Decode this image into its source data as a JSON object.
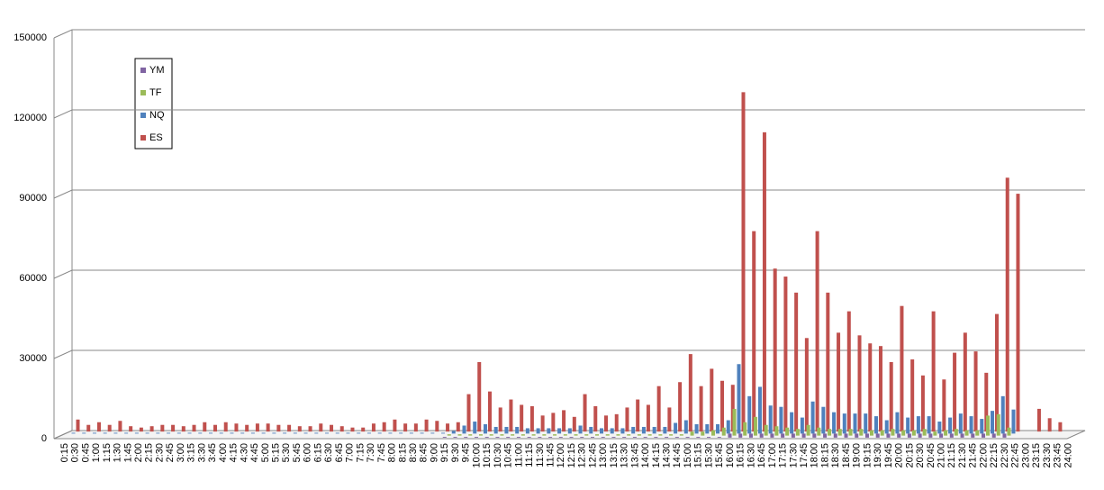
{
  "chart_data": {
    "type": "bar",
    "categories": [
      "0:15",
      "0:30",
      "0:45",
      "1:00",
      "1:15",
      "1:30",
      "1:45",
      "2:00",
      "2:15",
      "2:30",
      "2:45",
      "3:00",
      "3:15",
      "3:30",
      "3:45",
      "4:00",
      "4:15",
      "4:30",
      "4:45",
      "5:00",
      "5:15",
      "5:30",
      "5:45",
      "6:00",
      "6:15",
      "6:30",
      "6:45",
      "7:00",
      "7:15",
      "7:30",
      "7:45",
      "8:00",
      "8:15",
      "8:30",
      "8:45",
      "9:00",
      "9:15",
      "9:30",
      "9:45",
      "10:00",
      "10:15",
      "10:30",
      "10:45",
      "11:00",
      "11:15",
      "11:30",
      "11:45",
      "12:00",
      "12:15",
      "12:30",
      "12:45",
      "13:00",
      "13:15",
      "13:30",
      "13:45",
      "14:00",
      "14:15",
      "14:30",
      "14:45",
      "15:00",
      "15:15",
      "15:30",
      "15:45",
      "16:00",
      "16:15",
      "16:30",
      "16:45",
      "17:00",
      "17:15",
      "17:30",
      "17:45",
      "18:00",
      "18:15",
      "18:30",
      "18:45",
      "19:00",
      "19:15",
      "19:30",
      "19:45",
      "20:00",
      "20:15",
      "20:30",
      "20:45",
      "21:00",
      "21:15",
      "21:30",
      "21:45",
      "22:00",
      "22:15",
      "22:30",
      "22:45",
      "23:00",
      "23:15",
      "23:30",
      "23:45",
      "24:00"
    ],
    "series": [
      {
        "name": "YM",
        "color": "#8064a2",
        "values": [
          0,
          0,
          0,
          0,
          0,
          0,
          0,
          0,
          0,
          0,
          0,
          0,
          0,
          0,
          0,
          0,
          0,
          0,
          0,
          0,
          0,
          0,
          0,
          0,
          0,
          0,
          0,
          0,
          0,
          0,
          0,
          0,
          0,
          0,
          0,
          0,
          300,
          300,
          300,
          300,
          300,
          300,
          300,
          300,
          300,
          300,
          300,
          300,
          300,
          300,
          300,
          300,
          300,
          300,
          300,
          300,
          300,
          300,
          300,
          300,
          300,
          300,
          300,
          1500,
          1500,
          1500,
          1500,
          1500,
          1500,
          1500,
          1500,
          1500,
          1500,
          1500,
          1500,
          1500,
          1500,
          1500,
          1500,
          1500,
          1500,
          1500,
          1500,
          1500,
          1500,
          1500,
          1500,
          1500,
          1500,
          1500,
          0,
          0,
          0,
          0,
          0,
          0
        ]
      },
      {
        "name": "TF",
        "color": "#9bbb59",
        "values": [
          0,
          0,
          0,
          0,
          0,
          0,
          0,
          0,
          0,
          0,
          0,
          0,
          0,
          0,
          0,
          0,
          0,
          0,
          0,
          0,
          0,
          0,
          0,
          0,
          0,
          0,
          0,
          0,
          0,
          0,
          0,
          0,
          0,
          0,
          0,
          0,
          500,
          500,
          500,
          500,
          500,
          500,
          500,
          500,
          500,
          500,
          500,
          500,
          500,
          500,
          500,
          500,
          500,
          500,
          500,
          500,
          500,
          500,
          500,
          1500,
          1500,
          2000,
          3000,
          10000,
          5000,
          7000,
          4000,
          3500,
          3000,
          2500,
          4000,
          3000,
          2500,
          2500,
          2500,
          2500,
          2000,
          2000,
          2500,
          2000,
          2000,
          2500,
          1500,
          2000,
          2500,
          2000,
          2000,
          7500,
          8000,
          3000,
          0,
          0,
          0,
          0,
          0,
          0
        ]
      },
      {
        "name": "NQ",
        "color": "#4f81bd",
        "values": [
          300,
          300,
          300,
          300,
          300,
          300,
          300,
          300,
          300,
          300,
          300,
          300,
          300,
          300,
          300,
          300,
          300,
          300,
          300,
          300,
          300,
          300,
          300,
          300,
          300,
          300,
          300,
          300,
          300,
          300,
          300,
          300,
          300,
          300,
          300,
          300,
          1000,
          3000,
          4500,
          3500,
          2500,
          2500,
          2500,
          2000,
          2000,
          2000,
          2000,
          2000,
          3000,
          2500,
          2000,
          2000,
          2000,
          2500,
          2500,
          2500,
          2500,
          4000,
          5000,
          3500,
          3500,
          3500,
          5000,
          26000,
          14000,
          17500,
          10500,
          10000,
          8000,
          6000,
          12000,
          10000,
          8000,
          7500,
          7500,
          7500,
          6500,
          5000,
          8000,
          6000,
          6500,
          6500,
          4500,
          6000,
          7500,
          6500,
          5500,
          8500,
          14000,
          9000,
          0,
          0,
          0,
          0,
          0,
          0
        ]
      },
      {
        "name": "ES",
        "color": "#c0504d",
        "values": [
          4500,
          2500,
          3500,
          2500,
          4000,
          2000,
          1500,
          2000,
          2500,
          2500,
          2000,
          2500,
          3500,
          2500,
          3500,
          3000,
          2500,
          3000,
          3000,
          2500,
          2500,
          2000,
          2000,
          3000,
          2500,
          2000,
          1500,
          1500,
          3000,
          3500,
          4500,
          3000,
          3000,
          4500,
          4000,
          3000,
          3500,
          14000,
          26000,
          15000,
          9000,
          12000,
          10000,
          9500,
          6000,
          7000,
          8000,
          5500,
          14000,
          9500,
          6000,
          6500,
          9000,
          12000,
          10000,
          17000,
          9000,
          18500,
          29000,
          17000,
          23500,
          19000,
          17500,
          127000,
          75000,
          112000,
          61000,
          58000,
          52000,
          35000,
          75000,
          52000,
          37000,
          45000,
          36000,
          33000,
          32000,
          26000,
          47000,
          27000,
          21000,
          45000,
          19500,
          29500,
          37000,
          30000,
          22000,
          44000,
          95000,
          89000,
          0,
          8500,
          5000,
          3500,
          0,
          0
        ]
      }
    ],
    "ylim": [
      0,
      150000
    ],
    "yticks": [
      0,
      30000,
      60000,
      90000,
      120000,
      150000
    ],
    "grid": true
  }
}
